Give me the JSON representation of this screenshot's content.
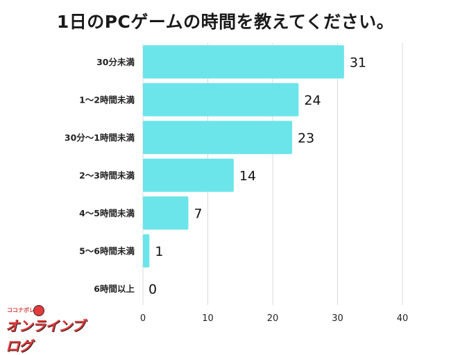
{
  "title": "1日のPCゲームの時間を教えてください。",
  "colors": {
    "bar": "#6ce5ea",
    "grid": "#d8d8d8",
    "text": "#222222"
  },
  "logo": {
    "sub_text": "ココナボレの",
    "main_text": "オンラインブログ"
  },
  "chart_data": {
    "type": "bar",
    "orientation": "horizontal",
    "categories": [
      "30分未満",
      "1〜2時間未満",
      "30分〜1時間未満",
      "2〜3時間未満",
      "4〜5時間未満",
      "5〜6時間未満",
      "6時間以上"
    ],
    "values": [
      31,
      24,
      23,
      14,
      7,
      1,
      0
    ],
    "xlim": [
      0,
      40
    ],
    "xticks": [
      0,
      10,
      20,
      30,
      40
    ],
    "grid": true,
    "title": "1日のPCゲームの時間を教えてください。",
    "xlabel": "",
    "ylabel": ""
  }
}
